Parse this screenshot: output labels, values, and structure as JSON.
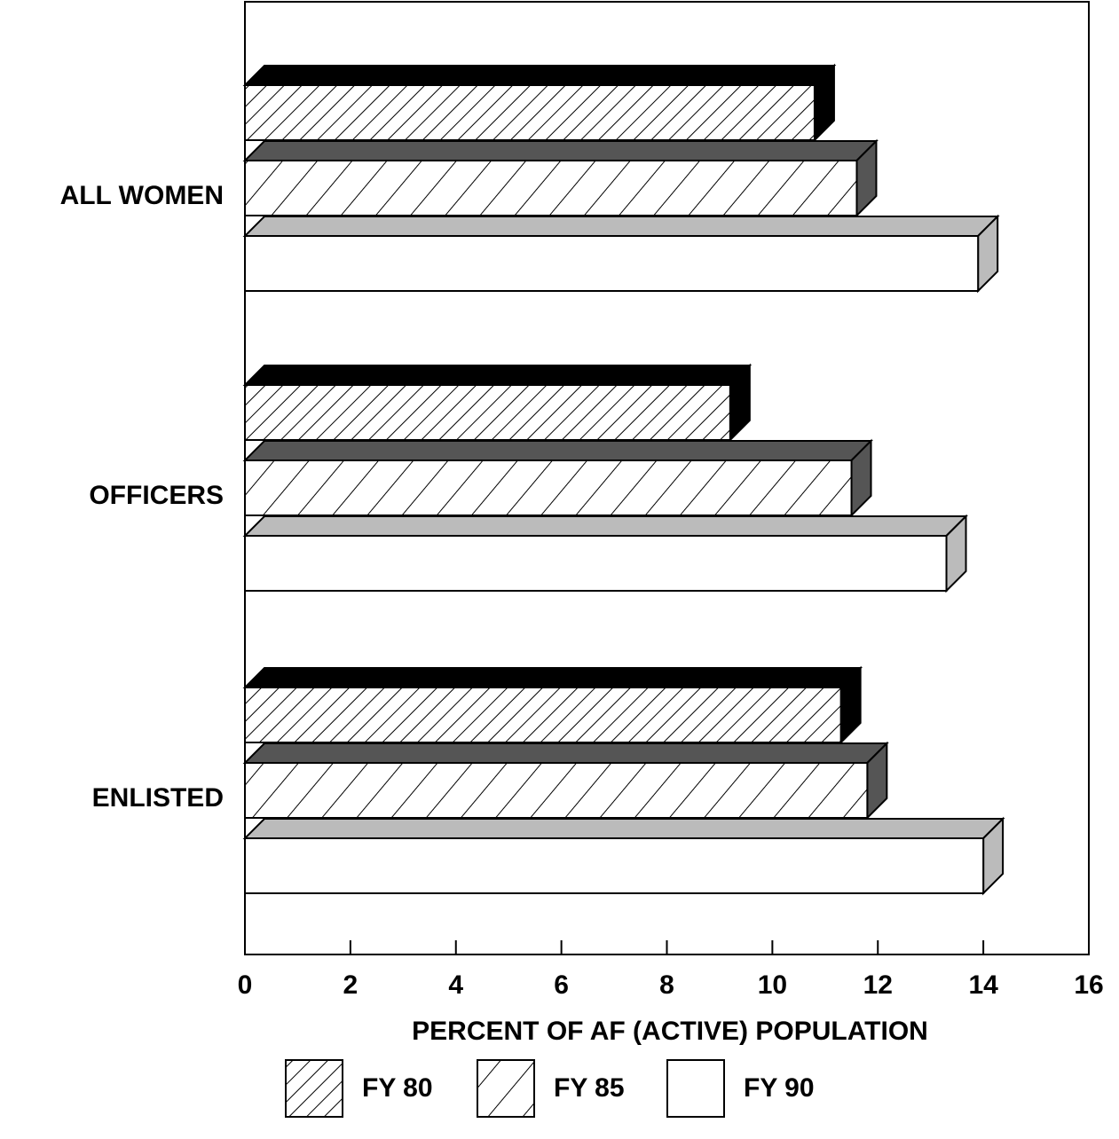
{
  "chart_data": {
    "type": "bar3d-horizontal",
    "categories": [
      "ALL WOMEN",
      "OFFICERS",
      "ENLISTED"
    ],
    "series": [
      {
        "name": "FY 80",
        "color": "#000000",
        "pattern": "dense-hatch",
        "values": [
          10.8,
          9.2,
          11.3
        ]
      },
      {
        "name": "FY 85",
        "color": "#555555",
        "pattern": "sparse-hatch",
        "values": [
          11.6,
          11.5,
          11.8
        ]
      },
      {
        "name": "FY 90",
        "color": "#bbbbbb",
        "pattern": "none",
        "values": [
          13.9,
          13.3,
          14.0
        ]
      }
    ],
    "xlabel": "PERCENT OF AF (ACTIVE) POPULATION",
    "xlim": [
      0,
      16
    ],
    "xticks": [
      0,
      2,
      4,
      6,
      8,
      10,
      12,
      14,
      16
    ]
  }
}
